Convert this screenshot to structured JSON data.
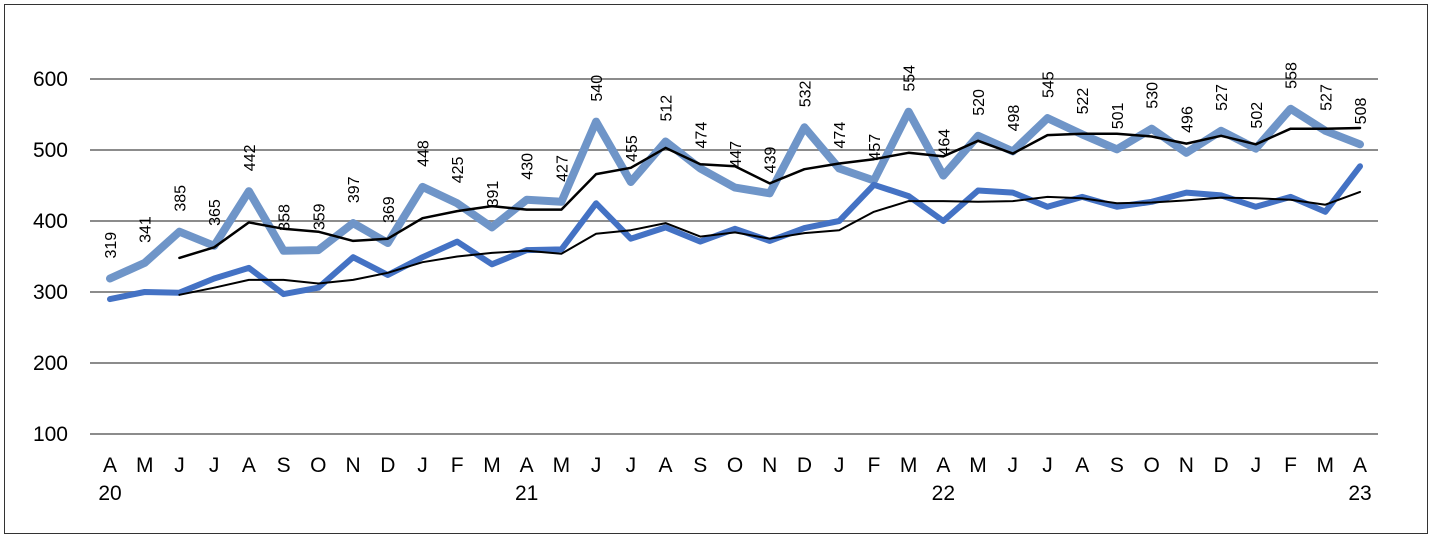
{
  "chart_data": {
    "type": "line",
    "categories": [
      "A",
      "M",
      "J",
      "J",
      "A",
      "S",
      "O",
      "N",
      "D",
      "J",
      "F",
      "M",
      "A",
      "M",
      "J",
      "J",
      "A",
      "S",
      "O",
      "N",
      "D",
      "J",
      "F",
      "M",
      "A",
      "M",
      "J",
      "J",
      "A",
      "S",
      "O",
      "N",
      "D",
      "J",
      "F",
      "M",
      "A"
    ],
    "year_labels": [
      {
        "index": 0,
        "label": "20"
      },
      {
        "index": 12,
        "label": "21"
      },
      {
        "index": 24,
        "label": "22"
      },
      {
        "index": 36,
        "label": "23"
      }
    ],
    "y_ticks": [
      100,
      200,
      300,
      400,
      500,
      600
    ],
    "ylim": [
      100,
      600
    ],
    "grid": true,
    "series": [
      {
        "values": [
          319,
          341,
          385,
          365,
          442,
          358,
          359,
          397,
          369,
          448,
          425,
          391,
          430,
          427,
          540,
          455,
          512,
          474,
          447,
          439,
          532,
          474,
          457,
          554,
          464,
          520,
          498,
          545,
          522,
          501,
          530,
          496,
          527,
          502,
          558,
          527,
          508
        ],
        "data_labels": [
          "319",
          "341",
          "385",
          "365",
          "442",
          "358",
          "359",
          "397",
          "369",
          "448",
          "425",
          "391",
          "430",
          "427",
          "540",
          "455",
          "512",
          "474",
          "447",
          "439",
          "532",
          "474",
          "457",
          "554",
          "464",
          "520",
          "498",
          "545",
          "522",
          "501",
          "530",
          "496",
          "527",
          "502",
          "558",
          "527",
          "508"
        ],
        "color": "#6f95c8",
        "width": 8
      },
      {
        "values": [
          null,
          null,
          348,
          363,
          398,
          389,
          385,
          372,
          375,
          404,
          414,
          421,
          416,
          416,
          466,
          475,
          503,
          480,
          477,
          453,
          473,
          481,
          487,
          496,
          491,
          513,
          495,
          521,
          523,
          523,
          519,
          509,
          520,
          508,
          530,
          530,
          531
        ],
        "color": "#000000",
        "width": 2.5
      },
      {
        "values": [
          290,
          300,
          299,
          319,
          334,
          297,
          306,
          349,
          324,
          349,
          371,
          339,
          359,
          360,
          425,
          375,
          391,
          371,
          389,
          372,
          390,
          400,
          451,
          435,
          400,
          443,
          440,
          420,
          434,
          420,
          427,
          440,
          436,
          420,
          434,
          413,
          477
        ],
        "color": "#4472c4",
        "width": 6
      },
      {
        "values": [
          null,
          null,
          296,
          306,
          317,
          317,
          312,
          317,
          327,
          342,
          350,
          355,
          358,
          354,
          382,
          387,
          397,
          378,
          384,
          375,
          383,
          387,
          413,
          428,
          428,
          427,
          428,
          434,
          432,
          425,
          426,
          429,
          433,
          432,
          430,
          423,
          441
        ],
        "color": "#000000",
        "width": 2
      }
    ]
  }
}
